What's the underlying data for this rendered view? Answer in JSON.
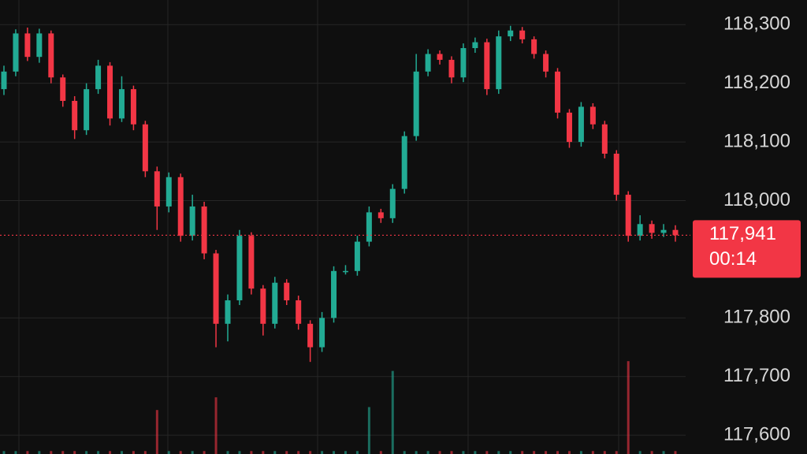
{
  "chart_data": {
    "type": "candlestick",
    "open": [
      118190,
      118220,
      118285,
      118245,
      118285,
      118210,
      118170,
      118120,
      118190,
      118230,
      118140,
      118190,
      118130,
      118050,
      117990,
      118040,
      117940,
      117990,
      117910,
      117790,
      117830,
      117940,
      117850,
      117790,
      117860,
      117830,
      117790,
      117750,
      117800,
      117880,
      117880,
      117930,
      117980,
      117970,
      118020,
      118110,
      118220,
      118250,
      118240,
      118210,
      118260,
      118270,
      118190,
      118280,
      118290,
      118275,
      118250,
      118220,
      118150,
      118100,
      118160,
      118130,
      118080,
      118010,
      117940,
      117960,
      117945,
      117950
    ],
    "high": [
      118230,
      118292,
      118295,
      118293,
      118290,
      118215,
      118178,
      118200,
      118240,
      118236,
      118212,
      118196,
      118136,
      118058,
      118048,
      118046,
      118010,
      117998,
      117916,
      117840,
      117950,
      117946,
      117856,
      117870,
      117866,
      117838,
      117796,
      117810,
      117888,
      117890,
      117940,
      117990,
      117986,
      118028,
      118118,
      118250,
      118258,
      118256,
      118246,
      118268,
      118278,
      118276,
      118290,
      118298,
      118296,
      118280,
      118256,
      118226,
      118156,
      118168,
      118166,
      118136,
      118086,
      118016,
      117975,
      117966,
      117960,
      117958
    ],
    "low": [
      118180,
      118212,
      118238,
      118235,
      118200,
      118160,
      118105,
      118112,
      118182,
      118128,
      118134,
      118120,
      118040,
      117950,
      117980,
      117930,
      117932,
      117900,
      117750,
      117760,
      117822,
      117840,
      117770,
      117782,
      117822,
      117780,
      117725,
      117742,
      117792,
      117874,
      117872,
      117922,
      117962,
      117962,
      118012,
      118102,
      118212,
      118232,
      118200,
      118202,
      118252,
      118180,
      118182,
      118272,
      118268,
      118242,
      118210,
      118140,
      118090,
      118092,
      118122,
      118072,
      118000,
      117930,
      117932,
      117935,
      117938,
      117930
    ],
    "close": [
      118220,
      118285,
      118245,
      118285,
      118210,
      118170,
      118120,
      118190,
      118230,
      118140,
      118190,
      118130,
      118050,
      117990,
      118040,
      117940,
      117990,
      117910,
      117790,
      117830,
      117940,
      117850,
      117790,
      117860,
      117830,
      117790,
      117750,
      117800,
      117880,
      117880,
      117930,
      117980,
      117970,
      118020,
      118110,
      118220,
      118250,
      118240,
      118210,
      118260,
      118270,
      118190,
      118280,
      118290,
      118275,
      118250,
      118220,
      118150,
      118100,
      118160,
      118130,
      118080,
      118010,
      117940,
      117960,
      117945,
      117950,
      117941
    ],
    "volume": [
      3,
      3,
      3,
      3,
      3,
      3,
      3,
      3,
      3,
      3,
      3,
      3,
      3,
      45,
      3,
      3,
      3,
      3,
      58,
      3,
      3,
      3,
      3,
      3,
      3,
      3,
      3,
      3,
      3,
      3,
      3,
      48,
      3,
      85,
      3,
      3,
      3,
      3,
      3,
      3,
      3,
      3,
      3,
      3,
      3,
      3,
      3,
      3,
      3,
      3,
      3,
      3,
      3,
      95,
      3,
      3,
      3,
      3
    ],
    "vlim": [
      0,
      100
    ],
    "up_color": "#22ab94",
    "down_color": "#f23645",
    "ylim": [
      117568,
      118342
    ],
    "yticks": [
      {
        "value": 117600,
        "label": "117,600"
      },
      {
        "value": 117700,
        "label": "117,700"
      },
      {
        "value": 117800,
        "label": "117,800"
      },
      {
        "value": 118000,
        "label": "118,000"
      },
      {
        "value": 118100,
        "label": "118,100"
      },
      {
        "value": 118200,
        "label": "118,200"
      },
      {
        "value": 118300,
        "label": "118,300"
      }
    ],
    "grid": true,
    "last_price": {
      "value": 117941,
      "label": "117,941"
    },
    "countdown": "00:14"
  }
}
